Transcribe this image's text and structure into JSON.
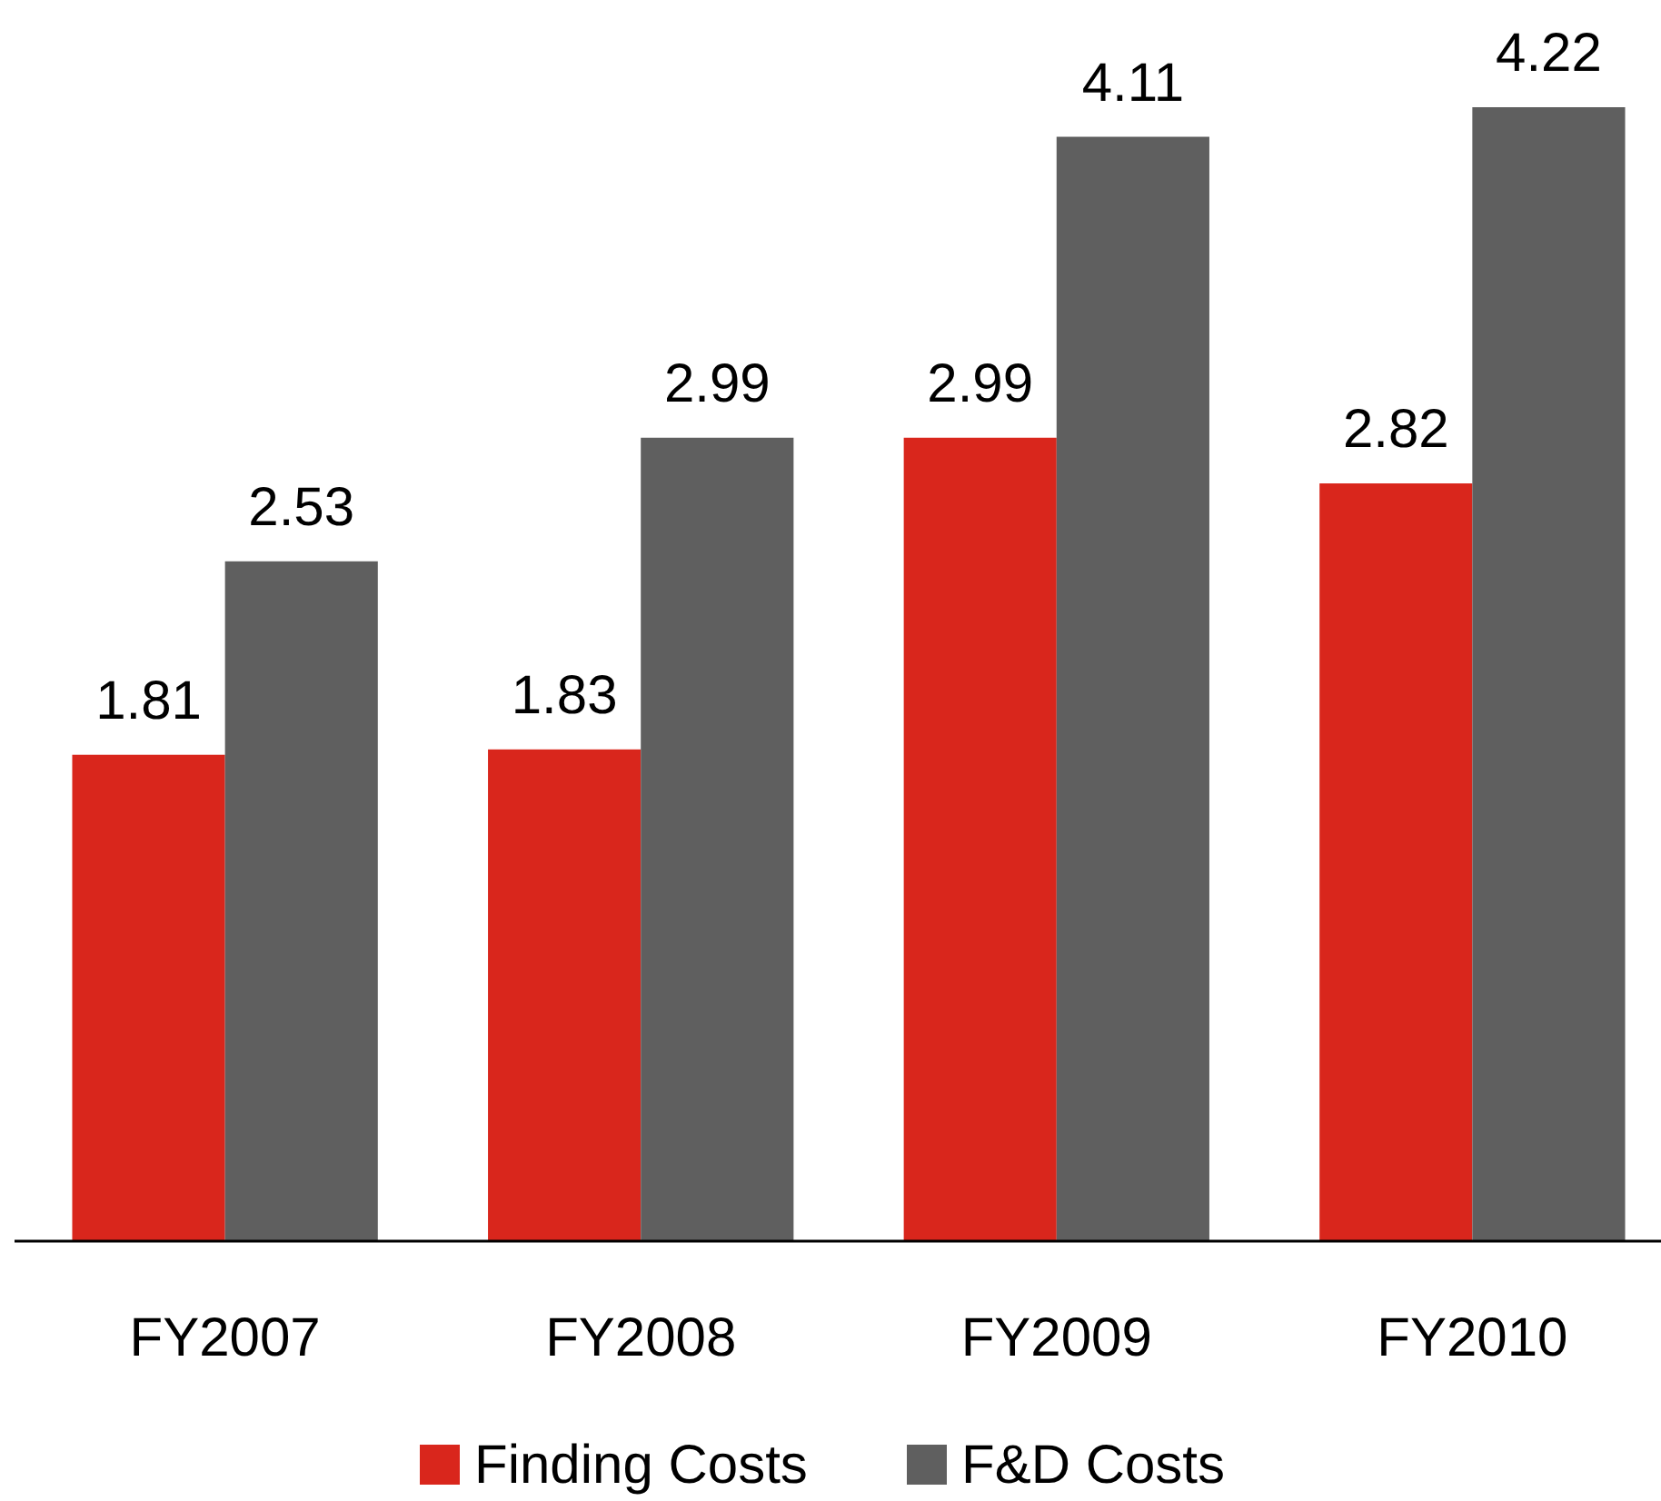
{
  "chart_data": {
    "type": "bar",
    "categories": [
      "FY2007",
      "FY2008",
      "FY2009",
      "FY2010"
    ],
    "series": [
      {
        "name": "Finding Costs",
        "color": "#d9261c",
        "values": [
          1.81,
          1.83,
          2.99,
          2.82
        ]
      },
      {
        "name": "F&D Costs",
        "color": "#5f5f5f",
        "values": [
          2.53,
          2.99,
          4.11,
          4.22
        ]
      }
    ],
    "data_labels": true,
    "legend": "bottom"
  }
}
